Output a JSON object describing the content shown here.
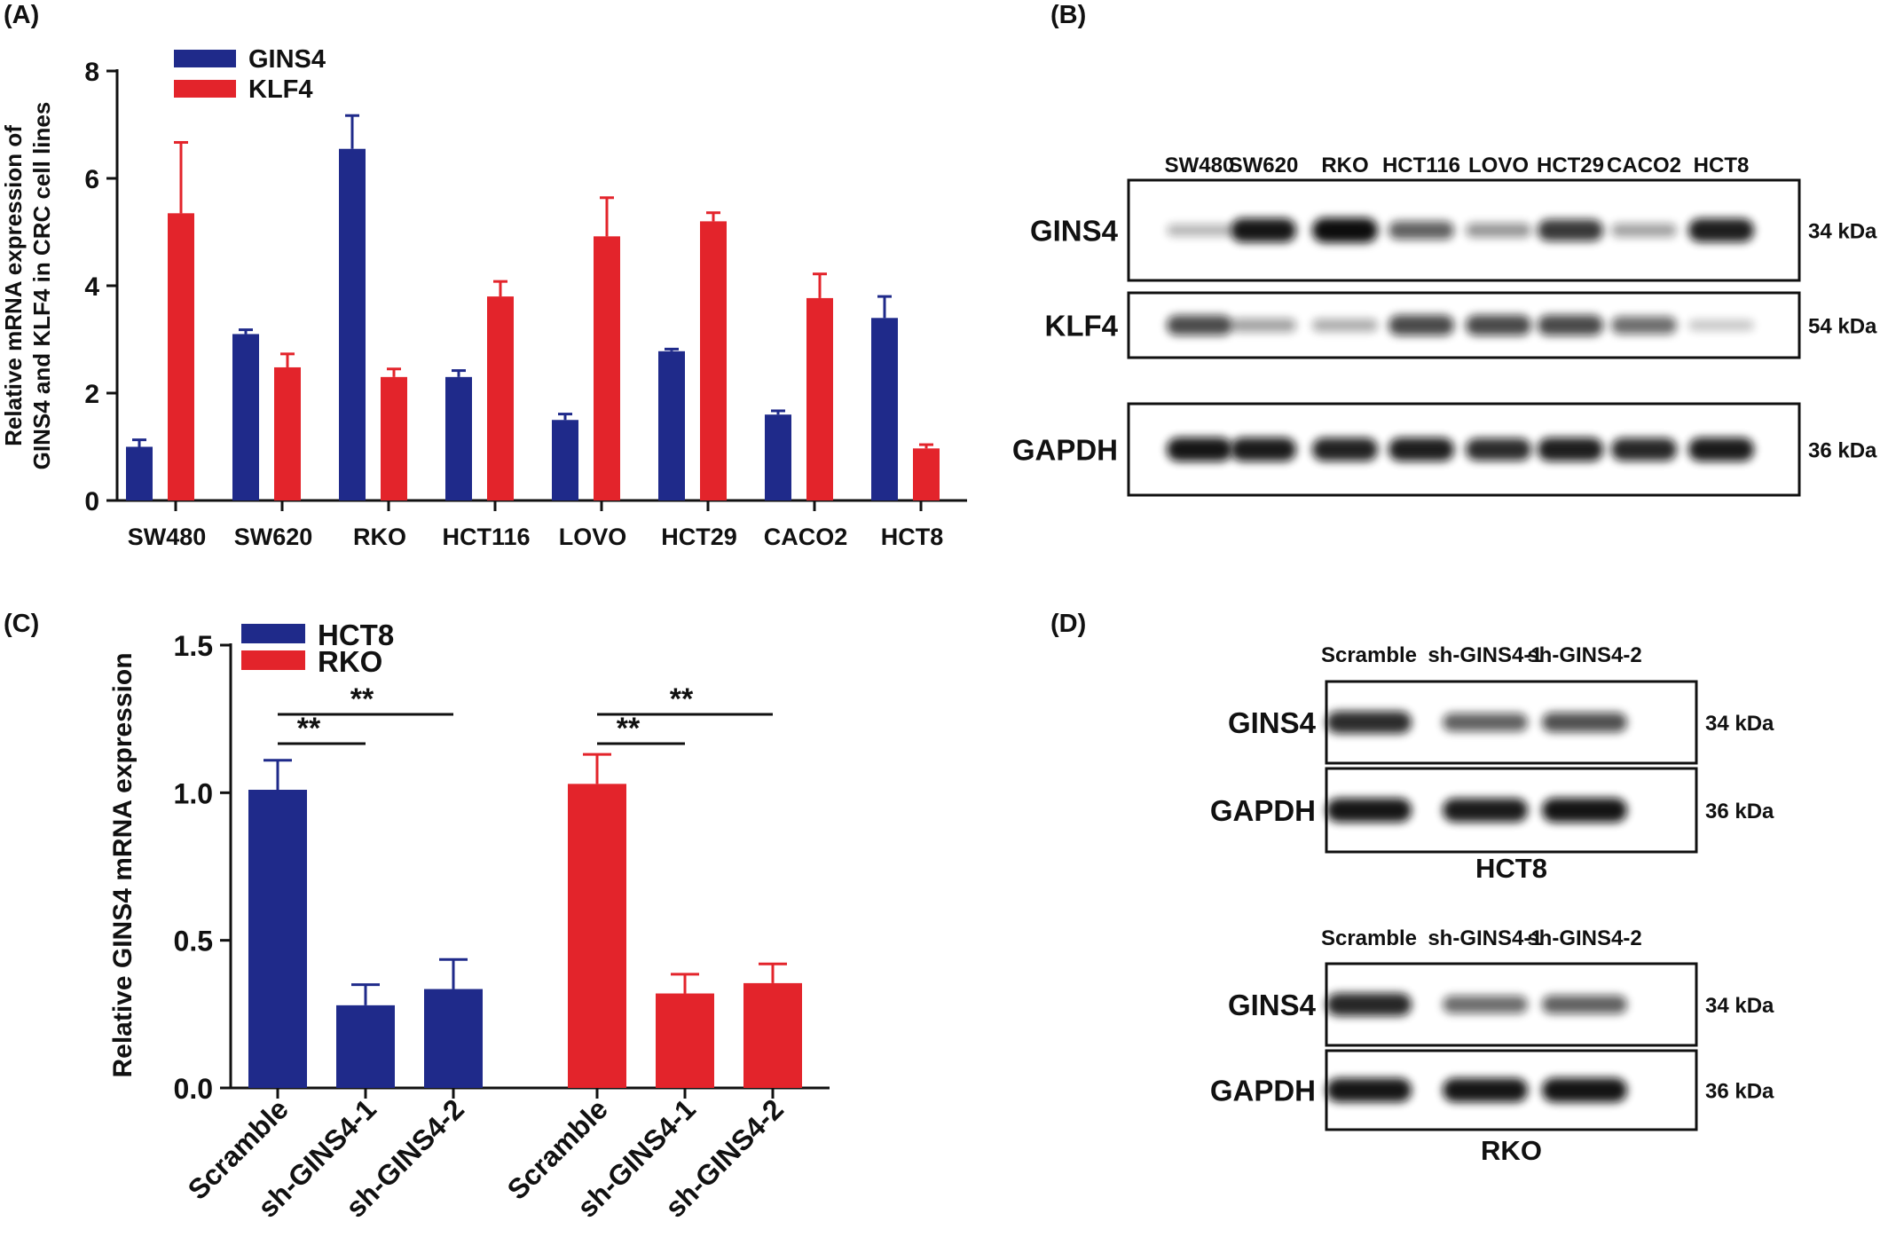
{
  "colors": {
    "blue": "#1f2a8a",
    "red": "#e3242b",
    "axis": "#111111"
  },
  "panels": {
    "a": {
      "letter": "(A)"
    },
    "b": {
      "letter": "(B)"
    },
    "c": {
      "letter": "(C)"
    },
    "d": {
      "letter": "(D)"
    }
  },
  "chart_data": [
    {
      "id": "panel-a",
      "type": "bar",
      "ylabel": [
        "Relative mRNA expression of",
        "GINS4 and KLF4  in CRC cell lines"
      ],
      "ylim": [
        0,
        8
      ],
      "yticks": [
        0,
        2,
        4,
        6,
        8
      ],
      "categories": [
        "SW480",
        "SW620",
        "RKO",
        "HCT116",
        "LOVO",
        "HCT29",
        "CACO2",
        "HCT8"
      ],
      "legend_position": "top-left",
      "series": [
        {
          "name": "GINS4",
          "color": "#1f2a8a",
          "values": [
            1.0,
            3.1,
            6.55,
            2.3,
            1.5,
            2.78,
            1.6,
            3.4
          ],
          "errors": [
            0.13,
            0.08,
            0.62,
            0.12,
            0.11,
            0.04,
            0.07,
            0.4
          ]
        },
        {
          "name": "KLF4",
          "color": "#e3242b",
          "values": [
            5.35,
            2.48,
            2.3,
            3.8,
            4.92,
            5.2,
            3.77,
            0.97
          ],
          "errors": [
            1.32,
            0.25,
            0.15,
            0.28,
            0.72,
            0.16,
            0.45,
            0.07
          ]
        }
      ]
    },
    {
      "id": "panel-c",
      "type": "bar",
      "ylabel": "Relative GINS4 mRNA expression",
      "ylim": [
        0,
        1.5
      ],
      "yticks": [
        "0.0",
        "0.5",
        "1.0",
        "1.5"
      ],
      "categories": [
        "Scramble",
        "sh-GINS4-1",
        "sh-GINS4-2"
      ],
      "legend_position": "top-left",
      "series": [
        {
          "name": "HCT8",
          "color": "#1f2a8a",
          "values": [
            1.01,
            0.28,
            0.335
          ],
          "errors": [
            0.1,
            0.07,
            0.1
          ]
        },
        {
          "name": "RKO",
          "color": "#e3242b",
          "values": [
            1.03,
            0.32,
            0.355
          ],
          "errors": [
            0.1,
            0.065,
            0.065
          ]
        }
      ],
      "significance": [
        "**",
        "**",
        "**",
        "**"
      ]
    }
  ],
  "blots": {
    "b": {
      "lanes": [
        "SW480",
        "SW620",
        "RKO",
        "HCT116",
        "LOVO",
        "HCT29",
        "CACO2",
        "HCT8"
      ],
      "rows": [
        {
          "label": "GINS4",
          "kda": "34 kDa",
          "intensity": [
            0.2,
            0.95,
            1.0,
            0.6,
            0.35,
            0.8,
            0.3,
            0.92
          ]
        },
        {
          "label": "KLF4",
          "kda": "54 kDa",
          "intensity": [
            0.7,
            0.3,
            0.25,
            0.72,
            0.72,
            0.72,
            0.55,
            0.12
          ]
        },
        {
          "label": "GAPDH",
          "kda": "36 kDa",
          "intensity": [
            0.95,
            0.93,
            0.9,
            0.92,
            0.85,
            0.92,
            0.88,
            0.93
          ]
        }
      ]
    },
    "d1": {
      "cell_line": "HCT8",
      "lanes": [
        "Scramble",
        "sh-GINS4-1",
        "sh-GINS4-2"
      ],
      "rows": [
        {
          "label": "GINS4",
          "kda": "34 kDa",
          "intensity": [
            0.85,
            0.6,
            0.68
          ]
        },
        {
          "label": "GAPDH",
          "kda": "36 kDa",
          "intensity": [
            0.95,
            0.93,
            0.97
          ]
        }
      ]
    },
    "d2": {
      "cell_line": "RKO",
      "lanes": [
        "Scramble",
        "sh-GINS4-1",
        "sh-GINS4-2"
      ],
      "rows": [
        {
          "label": "GINS4",
          "kda": "34 kDa",
          "intensity": [
            0.88,
            0.55,
            0.6
          ]
        },
        {
          "label": "GAPDH",
          "kda": "36 kDa",
          "intensity": [
            0.95,
            0.95,
            0.97
          ]
        }
      ]
    }
  }
}
